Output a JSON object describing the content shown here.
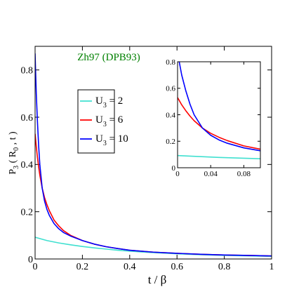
{
  "chart_data": {
    "type": "line",
    "annotation": "Zh97  (DPB93)",
    "annotation_color": "#008000",
    "xlabel": "t / β",
    "ylabel": {
      "main": "P",
      "sub": "3",
      "rest": " ( R",
      "sub2": "0",
      "rest2": " , t )"
    },
    "xlim": [
      0,
      1
    ],
    "ylim": [
      0,
      0.9
    ],
    "xticks": [
      {
        "value": 0,
        "label": "0"
      },
      {
        "value": 0.2,
        "label": "0.2"
      },
      {
        "value": 0.4,
        "label": "0.4"
      },
      {
        "value": 0.6,
        "label": "0.6"
      },
      {
        "value": 0.8,
        "label": "0.8"
      },
      {
        "value": 1,
        "label": "1"
      }
    ],
    "yticks": [
      {
        "value": 0,
        "label": "0"
      },
      {
        "value": 0.2,
        "label": "0.2"
      },
      {
        "value": 0.4,
        "label": "0.4"
      },
      {
        "value": 0.6,
        "label": "0.6"
      },
      {
        "value": 0.8,
        "label": "0.8"
      }
    ],
    "legend": {
      "placement": "upper-left",
      "entries": [
        {
          "main": "U",
          "sub": "3",
          "rest": " = 2",
          "color": "#40e0d0"
        },
        {
          "main": "U",
          "sub": "3",
          "rest": " = 6",
          "color": "#ff0000"
        },
        {
          "main": "U",
          "sub": "3",
          "rest": " = 10",
          "color": "#0000ff"
        }
      ]
    },
    "series": [
      {
        "color": "#40e0d0",
        "x": [
          0,
          0.05,
          0.1,
          0.15,
          0.2,
          0.25,
          0.3,
          0.35,
          0.4,
          0.45,
          0.5,
          0.6,
          0.7,
          0.8,
          0.9,
          1.0
        ],
        "y": [
          0.092,
          0.078,
          0.068,
          0.06,
          0.053,
          0.047,
          0.042,
          0.037,
          0.033,
          0.03,
          0.027,
          0.022,
          0.018,
          0.015,
          0.013,
          0.011
        ]
      },
      {
        "color": "#ff0000",
        "x": [
          0,
          0.005,
          0.01,
          0.015,
          0.02,
          0.03,
          0.04,
          0.05,
          0.06,
          0.08,
          0.1,
          0.12,
          0.15,
          0.2,
          0.25,
          0.3,
          0.35,
          0.4,
          0.5,
          0.6,
          0.7,
          0.8,
          0.9,
          1.0
        ],
        "y": [
          0.53,
          0.475,
          0.43,
          0.39,
          0.355,
          0.3,
          0.26,
          0.23,
          0.205,
          0.165,
          0.14,
          0.12,
          0.1,
          0.078,
          0.063,
          0.052,
          0.044,
          0.037,
          0.029,
          0.024,
          0.02,
          0.017,
          0.015,
          0.013
        ]
      },
      {
        "color": "#0000ff",
        "x": [
          0,
          0.002,
          0.005,
          0.01,
          0.015,
          0.02,
          0.03,
          0.04,
          0.05,
          0.06,
          0.08,
          0.1,
          0.12,
          0.15,
          0.2,
          0.25,
          0.3,
          0.35,
          0.4,
          0.5,
          0.6,
          0.7,
          0.8,
          0.9,
          1.0
        ],
        "y": [
          0.87,
          0.8,
          0.7,
          0.58,
          0.48,
          0.4,
          0.3,
          0.245,
          0.21,
          0.185,
          0.15,
          0.128,
          0.112,
          0.097,
          0.078,
          0.063,
          0.052,
          0.044,
          0.037,
          0.029,
          0.024,
          0.02,
          0.017,
          0.015,
          0.013
        ]
      }
    ],
    "inset": {
      "xlim": [
        0,
        0.1
      ],
      "ylim": [
        0,
        0.8
      ],
      "xticks": [
        {
          "value": 0,
          "label": "0"
        },
        {
          "value": 0.04,
          "label": "0.04"
        },
        {
          "value": 0.08,
          "label": "0.08"
        }
      ],
      "yticks": [
        {
          "value": 0,
          "label": "0"
        },
        {
          "value": 0.2,
          "label": "0.2"
        },
        {
          "value": 0.4,
          "label": "0.4"
        },
        {
          "value": 0.6,
          "label": "0.6"
        },
        {
          "value": 0.8,
          "label": "0.8"
        }
      ]
    }
  }
}
